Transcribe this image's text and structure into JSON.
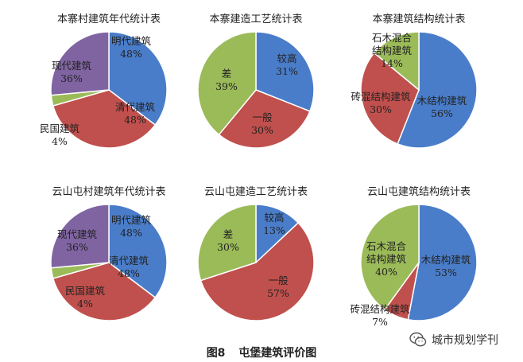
{
  "figure": {
    "caption_label": "图8",
    "caption_title": "屯堡建筑评价图",
    "watermark": "城市规划学刊",
    "watermark_icon": "wechat-icon"
  },
  "colors": {
    "blue": "#4a7dc9",
    "red": "#c0504d",
    "green": "#9bbb59",
    "purple": "#8064a2",
    "stroke": "#ffffff"
  },
  "chart_data": [
    {
      "type": "pie",
      "title": "本寨村建筑年代统计表",
      "slices": [
        {
          "label": "明代建筑",
          "value": 48,
          "pct": "48%",
          "color": "#4a7dc9"
        },
        {
          "label": "清代建筑",
          "value": 48,
          "pct": "48%",
          "color": "#c0504d"
        },
        {
          "label": "民国建筑",
          "value": 4,
          "pct": "4%",
          "color": "#9bbb59"
        },
        {
          "label": "现代建筑",
          "value": 36,
          "pct": "36%",
          "color": "#8064a2"
        }
      ]
    },
    {
      "type": "pie",
      "title": "本寨建造工艺统计表",
      "slices": [
        {
          "label": "较高",
          "value": 31,
          "pct": "31%",
          "color": "#4a7dc9"
        },
        {
          "label": "一般",
          "value": 30,
          "pct": "30%",
          "color": "#c0504d"
        },
        {
          "label": "差",
          "value": 39,
          "pct": "39%",
          "color": "#9bbb59"
        }
      ]
    },
    {
      "type": "pie",
      "title": "本寨建筑结构统计表",
      "slices": [
        {
          "label": "木结构建筑",
          "value": 56,
          "pct": "56%",
          "color": "#4a7dc9"
        },
        {
          "label": "砖混结构建筑",
          "value": 30,
          "pct": "30%",
          "color": "#c0504d"
        },
        {
          "label": "石木混合结构建筑",
          "value": 14,
          "pct": "14%",
          "color": "#9bbb59"
        }
      ]
    },
    {
      "type": "pie",
      "title": "云山屯村建筑年代统计表",
      "slices": [
        {
          "label": "明代建筑",
          "value": 48,
          "pct": "48%",
          "color": "#4a7dc9"
        },
        {
          "label": "清代建筑",
          "value": 48,
          "pct": "48%",
          "color": "#c0504d"
        },
        {
          "label": "民国建筑",
          "value": 4,
          "pct": "4%",
          "color": "#9bbb59"
        },
        {
          "label": "现代建筑",
          "value": 36,
          "pct": "36%",
          "color": "#8064a2"
        }
      ]
    },
    {
      "type": "pie",
      "title": "云山屯建造工艺统计表",
      "slices": [
        {
          "label": "较高",
          "value": 13,
          "pct": "13%",
          "color": "#4a7dc9"
        },
        {
          "label": "一般",
          "value": 57,
          "pct": "57%",
          "color": "#c0504d"
        },
        {
          "label": "差",
          "value": 30,
          "pct": "30%",
          "color": "#9bbb59"
        }
      ]
    },
    {
      "type": "pie",
      "title": "云山屯建筑结构统计表",
      "slices": [
        {
          "label": "木结构建筑",
          "value": 53,
          "pct": "53%",
          "color": "#4a7dc9"
        },
        {
          "label": "砖混结构建筑",
          "value": 7,
          "pct": "7%",
          "color": "#c0504d"
        },
        {
          "label": "石木混合结构建筑",
          "value": 40,
          "pct": "40%",
          "color": "#9bbb59"
        }
      ]
    }
  ]
}
